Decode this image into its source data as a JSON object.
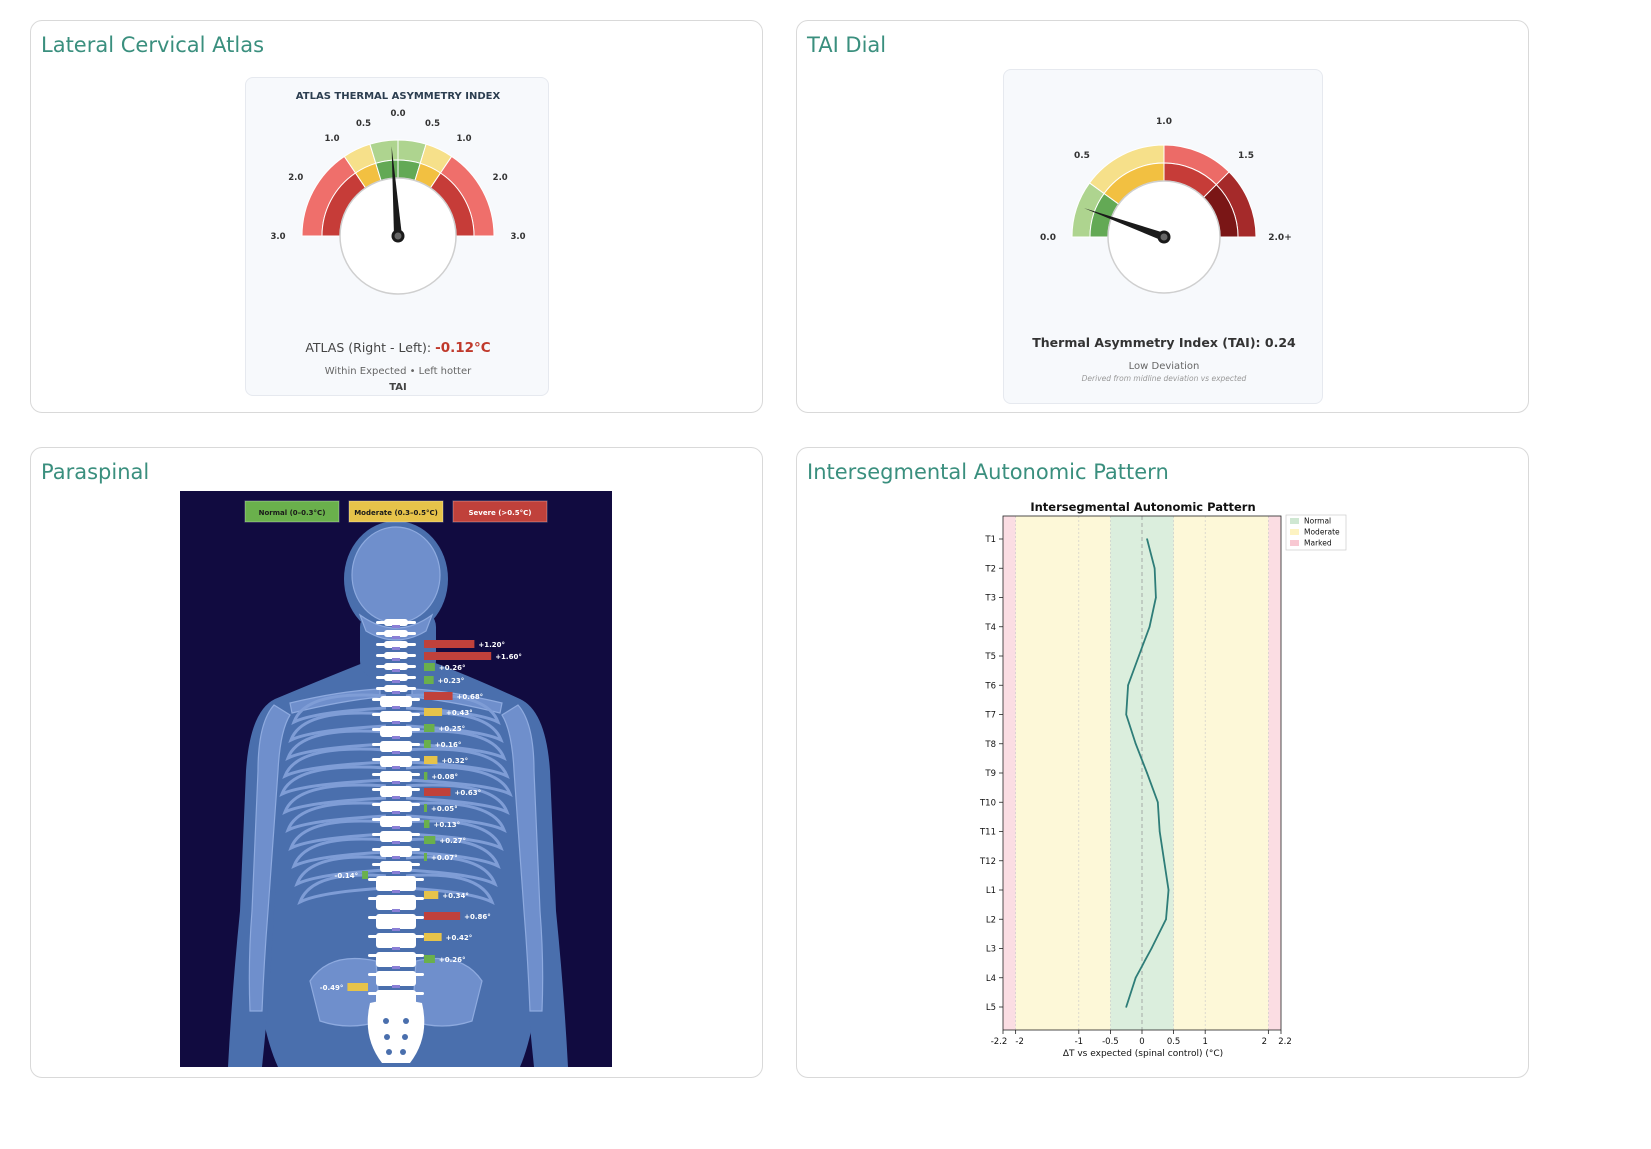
{
  "panels": {
    "atlas": "Lateral Cervical Atlas",
    "tai": "TAI Dial",
    "paraspinal": "Paraspinal",
    "pattern": "Intersegmental Autonomic Pattern"
  },
  "atlas_gauge": {
    "card_title": "ATLAS THERMAL ASYMMETRY INDEX",
    "left_labels": [
      "3.0",
      "2.0",
      "1.0",
      "0.5",
      "0.0"
    ],
    "right_labels": [
      "0.5",
      "1.0",
      "2.0",
      "3.0"
    ],
    "needle_value": -0.12,
    "reading_label": "ATLAS (Right - Left): ",
    "reading_value": "-0.12°C",
    "status": "Within Expected • Left hotter",
    "footer": "TAI",
    "value_color": "#c0392b"
  },
  "tai_gauge": {
    "labels": [
      "0.0",
      "0.5",
      "1.0",
      "1.5",
      "2.0+"
    ],
    "needle_value": 0.24,
    "reading": "Thermal Asymmetry Index (TAI): 0.24",
    "status": "Low Deviation",
    "note": "Derived from midline deviation vs expected"
  },
  "paraspinal": {
    "legend": [
      "Normal (0–0.3°C)",
      "Moderate (0.3–0.5°C)",
      "Severe (>0.5°C)"
    ],
    "colors": {
      "normal": "#6ab04c",
      "moderate": "#e6c34a",
      "severe": "#c0413b"
    },
    "bars": [
      {
        "label": "+1.20°",
        "value": 1.2,
        "side": "right"
      },
      {
        "label": "+1.60°",
        "value": 1.6,
        "side": "right"
      },
      {
        "label": "+0.26°",
        "value": 0.26,
        "side": "right"
      },
      {
        "label": "+0.23°",
        "value": 0.23,
        "side": "right"
      },
      {
        "label": "+0.68°",
        "value": 0.68,
        "side": "right"
      },
      {
        "label": "+0.43°",
        "value": 0.43,
        "side": "right"
      },
      {
        "label": "+0.25°",
        "value": 0.25,
        "side": "right"
      },
      {
        "label": "+0.16°",
        "value": 0.16,
        "side": "right"
      },
      {
        "label": "+0.32°",
        "value": 0.32,
        "side": "right"
      },
      {
        "label": "+0.08°",
        "value": 0.08,
        "side": "right"
      },
      {
        "label": "+0.63°",
        "value": 0.63,
        "side": "right"
      },
      {
        "label": "+0.05°",
        "value": 0.05,
        "side": "right"
      },
      {
        "label": "+0.13°",
        "value": 0.13,
        "side": "right"
      },
      {
        "label": "+0.27°",
        "value": 0.27,
        "side": "right"
      },
      {
        "label": "+0.07°",
        "value": 0.07,
        "side": "right"
      },
      {
        "label": "-0.14°",
        "value": -0.14,
        "side": "left"
      },
      {
        "label": "+0.34°",
        "value": 0.34,
        "side": "right"
      },
      {
        "label": "+0.86°",
        "value": 0.86,
        "side": "right"
      },
      {
        "label": "+0.42°",
        "value": 0.42,
        "side": "right"
      },
      {
        "label": "+0.26°",
        "value": 0.26,
        "side": "right"
      },
      {
        "label": "-0.49°",
        "value": -0.49,
        "side": "left"
      }
    ]
  },
  "chart_data": {
    "type": "line",
    "title": "Intersegmental Autonomic Pattern",
    "xlabel": "ΔT vs expected (spinal control) (°C)",
    "ylabel": "",
    "categories": [
      "T1",
      "T2",
      "T3",
      "T4",
      "T5",
      "T6",
      "T7",
      "T8",
      "T9",
      "T10",
      "T11",
      "T12",
      "L1",
      "L2",
      "L3",
      "L4",
      "L5"
    ],
    "values": [
      0.08,
      0.2,
      0.22,
      0.12,
      -0.05,
      -0.22,
      -0.25,
      -0.1,
      0.08,
      0.25,
      0.28,
      0.35,
      0.42,
      0.38,
      0.15,
      -0.1,
      -0.25
    ],
    "xlim": [
      -2.2,
      2.2
    ],
    "x_ticks": [
      -2.2,
      -2,
      -1,
      -0.5,
      0,
      0.5,
      1,
      2,
      2.2
    ],
    "x_tick_labels": [
      "-2.2",
      "-2",
      "-1",
      "-0.5",
      "0",
      "0.5",
      "1",
      "2",
      "2.2"
    ],
    "bands": [
      {
        "name": "Normal",
        "from": -0.5,
        "to": 0.5,
        "color": "#dbeedd"
      },
      {
        "name": "Moderate",
        "from": -2,
        "to": 2,
        "color": "#fdf8d8"
      },
      {
        "name": "Marked",
        "from": -2.2,
        "to": 2.2,
        "color": "#fbdde3"
      }
    ],
    "line_color": "#2e7d78",
    "legend": [
      "Normal",
      "Moderate",
      "Marked"
    ],
    "legend_position": "top-right-outside",
    "grid": true
  }
}
